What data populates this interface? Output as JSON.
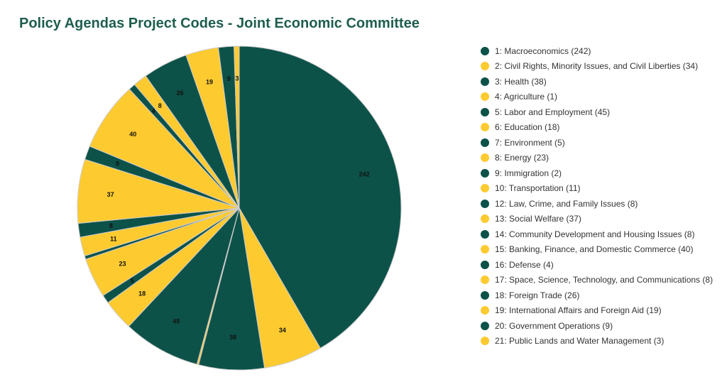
{
  "chart_data": {
    "type": "pie",
    "title": "Policy Agendas Project Codes - Joint Economic Committee",
    "colors": [
      "#0d5249",
      "#fdca30"
    ],
    "slice_border_color": "#cccccc",
    "legend_position": "right",
    "slices": [
      {
        "label": "1: Macroeconomics",
        "value": 242
      },
      {
        "label": "2: Civil Rights, Minority Issues, and Civil Liberties",
        "value": 34
      },
      {
        "label": "3: Health",
        "value": 38
      },
      {
        "label": "4: Agriculture",
        "value": 1
      },
      {
        "label": "5: Labor and Employment",
        "value": 45
      },
      {
        "label": "6: Education",
        "value": 18
      },
      {
        "label": "7: Environment",
        "value": 5
      },
      {
        "label": "8: Energy",
        "value": 23
      },
      {
        "label": "9: Immigration",
        "value": 2
      },
      {
        "label": "10: Transportation",
        "value": 11
      },
      {
        "label": "12: Law, Crime, and Family Issues",
        "value": 8
      },
      {
        "label": "13: Social Welfare",
        "value": 37
      },
      {
        "label": "14: Community Development and Housing Issues",
        "value": 8
      },
      {
        "label": "15: Banking, Finance, and Domestic Commerce",
        "value": 40
      },
      {
        "label": "16: Defense",
        "value": 4
      },
      {
        "label": "17: Space, Science, Technology, and Communications",
        "value": 8
      },
      {
        "label": "18: Foreign Trade",
        "value": 26
      },
      {
        "label": "19: International Affairs and Foreign Aid",
        "value": 19
      },
      {
        "label": "20: Government Operations",
        "value": 9
      },
      {
        "label": "21: Public Lands and Water Management",
        "value": 3
      }
    ]
  }
}
